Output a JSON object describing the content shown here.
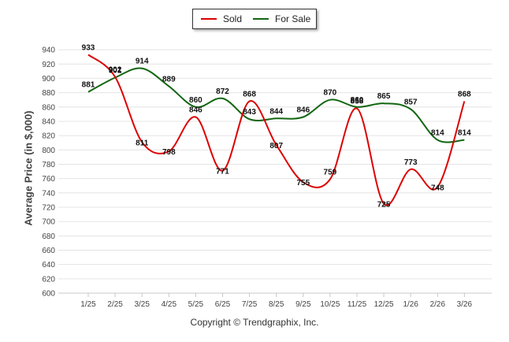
{
  "chart_data": {
    "type": "line",
    "title": "",
    "xlabel": "",
    "ylabel": "Average Price (in $,000)",
    "ylim": [
      600,
      950
    ],
    "yticks": [
      600,
      620,
      640,
      660,
      680,
      700,
      720,
      740,
      760,
      780,
      800,
      820,
      840,
      860,
      880,
      900,
      920,
      940
    ],
    "categories": [
      "1/25",
      "2/25",
      "3/25",
      "4/25",
      "5/25",
      "6/25",
      "7/25",
      "8/25",
      "9/25",
      "10/25",
      "11/25",
      "12/25",
      "1/26",
      "2/26",
      "3/26"
    ],
    "series": [
      {
        "name": "Sold",
        "color": "#dd0000",
        "values": [
          933,
          902,
          811,
          798,
          846,
          771,
          868,
          807,
          755,
          759,
          858,
          725,
          773,
          748,
          868
        ]
      },
      {
        "name": "For Sale",
        "color": "#116611",
        "values": [
          881,
          901,
          914,
          889,
          860,
          872,
          843,
          844,
          846,
          870,
          860,
          865,
          857,
          814,
          814
        ]
      }
    ],
    "legend_position": "top-center"
  },
  "footer": {
    "copyright": "Copyright © Trendgraphix, Inc."
  }
}
